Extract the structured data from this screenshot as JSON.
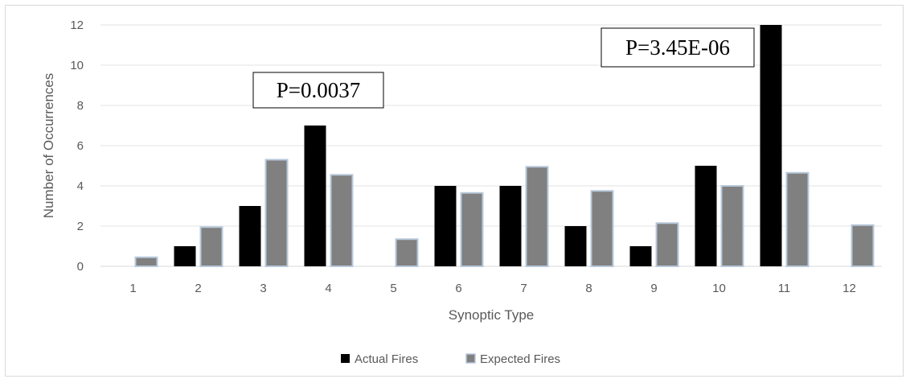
{
  "chart_data": {
    "type": "bar",
    "xlabel": "Synoptic Type",
    "ylabel": "Number of Occurrences",
    "categories": [
      "1",
      "2",
      "3",
      "4",
      "5",
      "6",
      "7",
      "8",
      "9",
      "10",
      "11",
      "12"
    ],
    "ylim": [
      0,
      12
    ],
    "yticks": [
      "0",
      "2",
      "4",
      "6",
      "8",
      "10",
      "12"
    ],
    "grid": true,
    "legend_position": "bottom",
    "series": [
      {
        "name": "Actual Fires",
        "color": "#000000",
        "values": [
          0,
          1,
          3,
          7,
          0,
          4,
          4,
          2,
          1,
          5,
          12,
          0
        ]
      },
      {
        "name": "Expected Fires",
        "color": "#808080",
        "values": [
          0.45,
          1.95,
          5.3,
          4.55,
          1.35,
          3.65,
          4.95,
          3.75,
          2.15,
          4.0,
          4.65,
          2.05
        ]
      }
    ],
    "annotations": [
      {
        "text": "P=0.0037",
        "category": "4"
      },
      {
        "text": "P=3.45E-06",
        "category": "11"
      }
    ]
  }
}
